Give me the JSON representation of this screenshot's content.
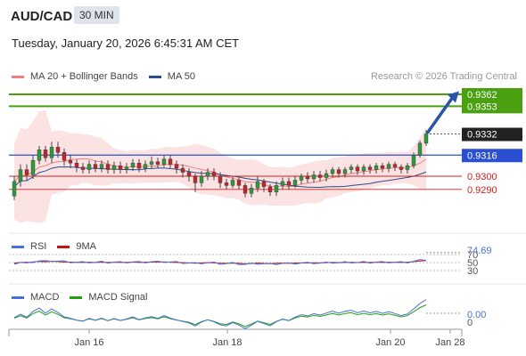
{
  "header": {
    "symbol": "AUD/CAD",
    "timeframe": "30 MIN",
    "timestamp": "Tuesday, January 20, 2026 6:45:31 AM CET"
  },
  "research": "Research © 2026 Trading Central",
  "legend_main": [
    {
      "label": "MA 20 + Bollinger Bands",
      "color": "#f08080"
    },
    {
      "label": "MA 50",
      "color": "#2a4d8f"
    }
  ],
  "legend_rsi": [
    {
      "label": "RSI",
      "color": "#4a6fd6"
    },
    {
      "label": "9MA",
      "color": "#cc1111"
    }
  ],
  "legend_macd": [
    {
      "label": "MACD",
      "color": "#4a6fd6"
    },
    {
      "label": "MACD Signal",
      "color": "#22a010"
    }
  ],
  "colors": {
    "green": "#4aa010",
    "blue": "#2a4fd0",
    "red": "#d02020",
    "dark": "#222222",
    "candle_up": "#2e9a3c",
    "candle_down": "#c0262b"
  },
  "chart_data": {
    "type": "candlestick",
    "current_price": "0.9332",
    "levels": [
      {
        "value": 0.9362,
        "label": "0.9362",
        "kind": "target-green"
      },
      {
        "value": 0.9353,
        "label": "0.9353",
        "kind": "target-green"
      },
      {
        "value": 0.9316,
        "label": "0.9316",
        "kind": "pivot-blue"
      },
      {
        "value": 0.93,
        "label": "0.9300",
        "kind": "support-red"
      },
      {
        "value": 0.929,
        "label": "0.9290",
        "kind": "support-red"
      }
    ],
    "x_ticks": [
      "Jan 16",
      "Jan 18",
      "Jan 20",
      "Jan 28"
    ],
    "candles": [
      [
        0.9285,
        0.9296,
        0.9282,
        0.93
      ],
      [
        0.9296,
        0.9305,
        0.9292,
        0.9309
      ],
      [
        0.9305,
        0.9301,
        0.9297,
        0.9309
      ],
      [
        0.9301,
        0.9312,
        0.9298,
        0.9316
      ],
      [
        0.9312,
        0.932,
        0.9309,
        0.9323
      ],
      [
        0.932,
        0.9314,
        0.9311,
        0.9323
      ],
      [
        0.9314,
        0.9322,
        0.931,
        0.9326
      ],
      [
        0.9322,
        0.9318,
        0.9314,
        0.9326
      ],
      [
        0.9318,
        0.9312,
        0.9308,
        0.9321
      ],
      [
        0.9312,
        0.931,
        0.9306,
        0.9316
      ],
      [
        0.931,
        0.9307,
        0.9303,
        0.9313
      ],
      [
        0.9307,
        0.9305,
        0.9302,
        0.931
      ],
      [
        0.9305,
        0.9309,
        0.9302,
        0.9312
      ],
      [
        0.9309,
        0.9306,
        0.9303,
        0.9312
      ],
      [
        0.9306,
        0.9309,
        0.9303,
        0.9312
      ],
      [
        0.9309,
        0.9305,
        0.9302,
        0.9312
      ],
      [
        0.9305,
        0.9308,
        0.9302,
        0.9311
      ],
      [
        0.9308,
        0.9305,
        0.9302,
        0.9311
      ],
      [
        0.9305,
        0.9307,
        0.9302,
        0.931
      ],
      [
        0.9307,
        0.931,
        0.9304,
        0.9313
      ],
      [
        0.931,
        0.9306,
        0.9303,
        0.9313
      ],
      [
        0.9306,
        0.9309,
        0.9303,
        0.9312
      ],
      [
        0.9309,
        0.9311,
        0.9306,
        0.9315
      ],
      [
        0.9311,
        0.9309,
        0.9306,
        0.9314
      ],
      [
        0.9309,
        0.9313,
        0.9307,
        0.9316
      ],
      [
        0.9313,
        0.9309,
        0.9306,
        0.9316
      ],
      [
        0.9309,
        0.9306,
        0.9302,
        0.9312
      ],
      [
        0.9306,
        0.9303,
        0.9299,
        0.9309
      ],
      [
        0.9303,
        0.93,
        0.9296,
        0.9306
      ],
      [
        0.93,
        0.9295,
        0.9288,
        0.9302
      ],
      [
        0.9295,
        0.93,
        0.9292,
        0.9304
      ],
      [
        0.93,
        0.9303,
        0.9297,
        0.9306
      ],
      [
        0.9303,
        0.93,
        0.9297,
        0.9306
      ],
      [
        0.93,
        0.9295,
        0.9291,
        0.9303
      ],
      [
        0.9295,
        0.9293,
        0.929,
        0.9298
      ],
      [
        0.9293,
        0.9297,
        0.9291,
        0.93
      ],
      [
        0.9297,
        0.9293,
        0.929,
        0.9299
      ],
      [
        0.9293,
        0.9287,
        0.9284,
        0.9295
      ],
      [
        0.9287,
        0.9291,
        0.9284,
        0.9294
      ],
      [
        0.9291,
        0.9296,
        0.9288,
        0.93
      ],
      [
        0.9296,
        0.9292,
        0.9288,
        0.9298
      ],
      [
        0.9292,
        0.9288,
        0.9285,
        0.9294
      ],
      [
        0.9288,
        0.9293,
        0.9285,
        0.9296
      ],
      [
        0.9293,
        0.9296,
        0.929,
        0.9299
      ],
      [
        0.9296,
        0.9293,
        0.929,
        0.9299
      ],
      [
        0.9293,
        0.9297,
        0.9291,
        0.93
      ],
      [
        0.9297,
        0.93,
        0.9294,
        0.9302
      ],
      [
        0.93,
        0.9298,
        0.9295,
        0.9303
      ],
      [
        0.9298,
        0.9301,
        0.9295,
        0.9304
      ],
      [
        0.9301,
        0.9299,
        0.9296,
        0.9304
      ],
      [
        0.9299,
        0.9302,
        0.9296,
        0.9305
      ],
      [
        0.9302,
        0.9305,
        0.9299,
        0.9307
      ],
      [
        0.9305,
        0.9302,
        0.9299,
        0.9307
      ],
      [
        0.9302,
        0.9305,
        0.9299,
        0.9307
      ],
      [
        0.9305,
        0.9307,
        0.9302,
        0.9309
      ],
      [
        0.9307,
        0.9304,
        0.9301,
        0.9309
      ],
      [
        0.9304,
        0.9307,
        0.9301,
        0.9309
      ],
      [
        0.9307,
        0.9305,
        0.9302,
        0.9309
      ],
      [
        0.9305,
        0.9308,
        0.9302,
        0.931
      ],
      [
        0.9308,
        0.9306,
        0.9303,
        0.931
      ],
      [
        0.9306,
        0.9309,
        0.9303,
        0.9311
      ],
      [
        0.9309,
        0.9307,
        0.9304,
        0.9311
      ],
      [
        0.9307,
        0.9305,
        0.9302,
        0.9309
      ],
      [
        0.9305,
        0.9308,
        0.9302,
        0.931
      ],
      [
        0.9308,
        0.9316,
        0.9306,
        0.9318
      ],
      [
        0.9316,
        0.9325,
        0.9314,
        0.9327
      ],
      [
        0.9325,
        0.9332,
        0.9323,
        0.9335
      ]
    ],
    "rsi_label": "74.69",
    "rsi_ticks": [
      "70",
      "50",
      "30"
    ],
    "macd_label": "0.00",
    "macd_ticks": [
      "0"
    ]
  }
}
